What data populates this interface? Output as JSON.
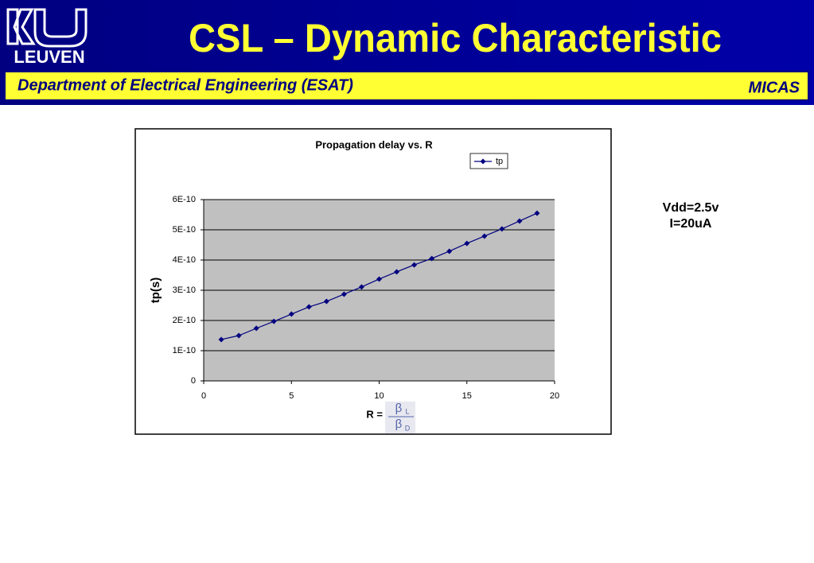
{
  "header": {
    "logo_text": "LEUVEN",
    "title": "CSL – Dynamic Characteristic",
    "department": "Department of Electrical Engineering (ESAT)",
    "group": "MICAS"
  },
  "notes": [
    "Vdd=2.5v",
    "I=20uA"
  ],
  "chart_data": {
    "type": "line",
    "title": "Propagation delay vs. R",
    "y_label": "tp(s)",
    "x_label": "R =",
    "x_label_fraction": {
      "numerator": {
        "symbol": "β",
        "subscript": "L"
      },
      "denominator": {
        "symbol": "β",
        "subscript": "D"
      }
    },
    "x": [
      1,
      2,
      3,
      4,
      5,
      6,
      7,
      8,
      9,
      10,
      11,
      12,
      13,
      14,
      15,
      16,
      17,
      18,
      19
    ],
    "series": [
      {
        "name": "tp",
        "color": "#000080",
        "values": [
          1.37e-10,
          1.5e-10,
          1.74e-10,
          1.97e-10,
          2.21e-10,
          2.45e-10,
          2.63e-10,
          2.87e-10,
          3.11e-10,
          3.37e-10,
          3.61e-10,
          3.84e-10,
          4.05e-10,
          4.29e-10,
          4.55e-10,
          4.79e-10,
          5.03e-10,
          5.29e-10,
          5.55e-10
        ]
      }
    ],
    "xlim": [
      0,
      20
    ],
    "xticks": [
      0,
      5,
      10,
      15,
      20
    ],
    "ylim": [
      0,
      6e-10
    ],
    "yticks": [
      0,
      {
        "value": 1e-10,
        "label": "1E-10"
      },
      {
        "value": 2e-10,
        "label": "2E-10"
      },
      {
        "value": 3e-10,
        "label": "3E-10"
      },
      {
        "value": 4e-10,
        "label": "4E-10"
      },
      {
        "value": 5e-10,
        "label": "5E-10"
      },
      {
        "value": 6e-10,
        "label": "6E-10"
      }
    ],
    "grid": true,
    "legend": "top-right",
    "plot_background": "#c0c0c0"
  }
}
